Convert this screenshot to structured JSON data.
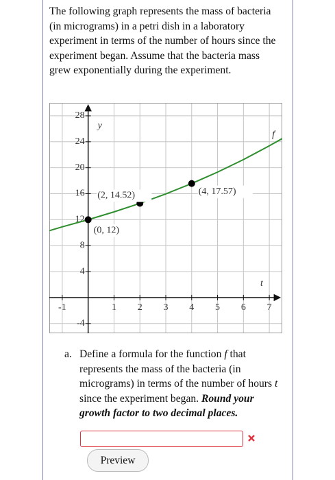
{
  "problem": {
    "intro": "The following graph represents the mass of bacteria (in micrograms) in a petri dish in a laboratory experiment in terms of the number of hours since the experiment began. Assume that the bacteria mass grew exponentially during the experiment.",
    "question": {
      "label": "a.",
      "parts": [
        "Define a formula for the function ",
        "f",
        " that represents the mass of the bacteria (in micrograms) in terms of the number of hours ",
        "t",
        " since the experiment began. "
      ],
      "emphasis": "Round your growth factor to two decimal places."
    },
    "button": "Preview"
  },
  "chart_data": {
    "type": "line",
    "x_axis_label": "t",
    "y_axis_label": "y",
    "curve_label": "f",
    "xlim": [
      -1.5,
      7.5
    ],
    "ylim": [
      -5.5,
      30
    ],
    "xticks": [
      -1,
      1,
      2,
      3,
      4,
      5,
      6,
      7
    ],
    "yticks": [
      -4,
      4,
      8,
      12,
      16,
      20,
      24,
      28
    ],
    "grid": true,
    "series": [
      {
        "name": "f",
        "color": "#2f8f2f",
        "x": [
          -1.5,
          -1,
          0,
          1,
          2,
          3,
          4,
          5,
          6,
          7,
          7.5
        ],
        "values": [
          10.3,
          10.9,
          12,
          13.2,
          14.52,
          15.97,
          17.57,
          19.33,
          21.26,
          23.38,
          24.5
        ]
      }
    ],
    "points": {
      "color": "#000000",
      "x": [
        0,
        2,
        4
      ],
      "values": [
        12,
        14.52,
        17.57
      ],
      "value_labels": [
        "(0, 12)",
        "(2, 14.52)",
        "(4, 17.57)"
      ]
    }
  }
}
